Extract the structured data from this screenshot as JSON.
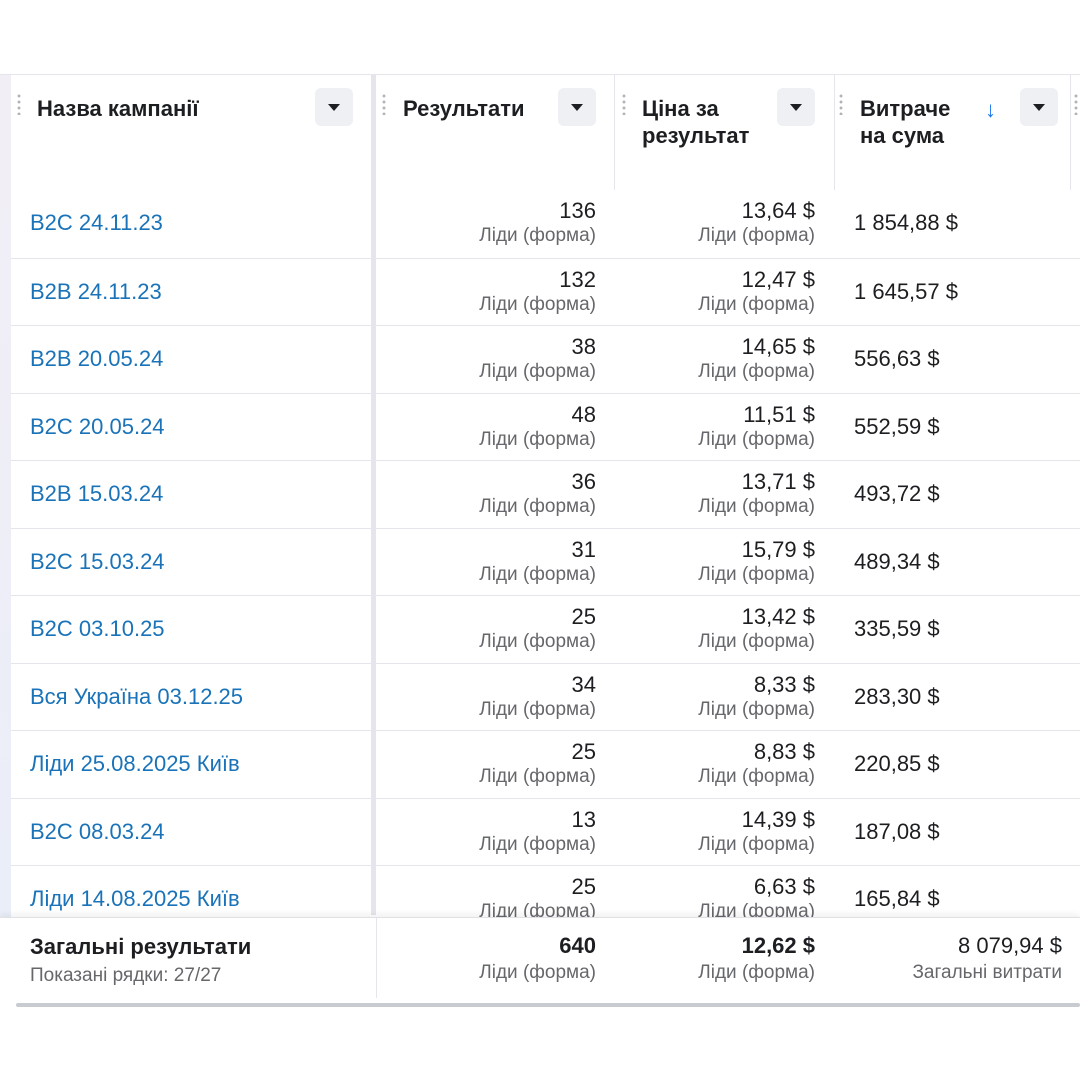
{
  "header": {
    "name": "Назва кампанії",
    "results": "Результати",
    "cpr_line1": "Ціна за",
    "cpr_line2": "результат",
    "spend_line1": "Витраче",
    "spend_line2": "на сума",
    "sort_indicator": "↓"
  },
  "rows": [
    {
      "name": "B2C 24.11.23",
      "results": "136",
      "results_type": "Ліди (форма)",
      "cpr": "13,64 $",
      "cpr_type": "Ліди (форма)",
      "spend": "1 854,88 $"
    },
    {
      "name": "B2B 24.11.23",
      "results": "132",
      "results_type": "Ліди (форма)",
      "cpr": "12,47 $",
      "cpr_type": "Ліди (форма)",
      "spend": "1 645,57 $"
    },
    {
      "name": "B2B 20.05.24",
      "results": "38",
      "results_type": "Ліди (форма)",
      "cpr": "14,65 $",
      "cpr_type": "Ліди (форма)",
      "spend": "556,63 $"
    },
    {
      "name": "B2C 20.05.24",
      "results": "48",
      "results_type": "Ліди (форма)",
      "cpr": "11,51 $",
      "cpr_type": "Ліди (форма)",
      "spend": "552,59 $"
    },
    {
      "name": "B2B 15.03.24",
      "results": "36",
      "results_type": "Ліди (форма)",
      "cpr": "13,71 $",
      "cpr_type": "Ліди (форма)",
      "spend": "493,72 $"
    },
    {
      "name": "B2C 15.03.24",
      "results": "31",
      "results_type": "Ліди (форма)",
      "cpr": "15,79 $",
      "cpr_type": "Ліди (форма)",
      "spend": "489,34 $"
    },
    {
      "name": "B2C 03.10.25",
      "results": "25",
      "results_type": "Ліди (форма)",
      "cpr": "13,42 $",
      "cpr_type": "Ліди (форма)",
      "spend": "335,59 $"
    },
    {
      "name": "Вся Україна 03.12.25",
      "results": "34",
      "results_type": "Ліди (форма)",
      "cpr": "8,33 $",
      "cpr_type": "Ліди (форма)",
      "spend": "283,30 $"
    },
    {
      "name": "Ліди 25.08.2025 Київ",
      "results": "25",
      "results_type": "Ліди (форма)",
      "cpr": "8,83 $",
      "cpr_type": "Ліди (форма)",
      "spend": "220,85 $"
    },
    {
      "name": "B2C 08.03.24",
      "results": "13",
      "results_type": "Ліди (форма)",
      "cpr": "14,39 $",
      "cpr_type": "Ліди (форма)",
      "spend": "187,08 $"
    },
    {
      "name": "Ліди 14.08.2025 Київ",
      "results": "25",
      "results_type": "Ліди (форма)",
      "cpr": "6,63 $",
      "cpr_type": "Ліди (форма)",
      "spend": "165,84 $"
    }
  ],
  "footer": {
    "title": "Загальні результати",
    "rows_shown": "Показані рядки: 27/27",
    "results": "640",
    "results_type": "Ліди (форма)",
    "cpr": "12,62 $",
    "cpr_type": "Ліди (форма)",
    "spend": "8 079,94 $",
    "spend_type": "Загальні витрати"
  }
}
